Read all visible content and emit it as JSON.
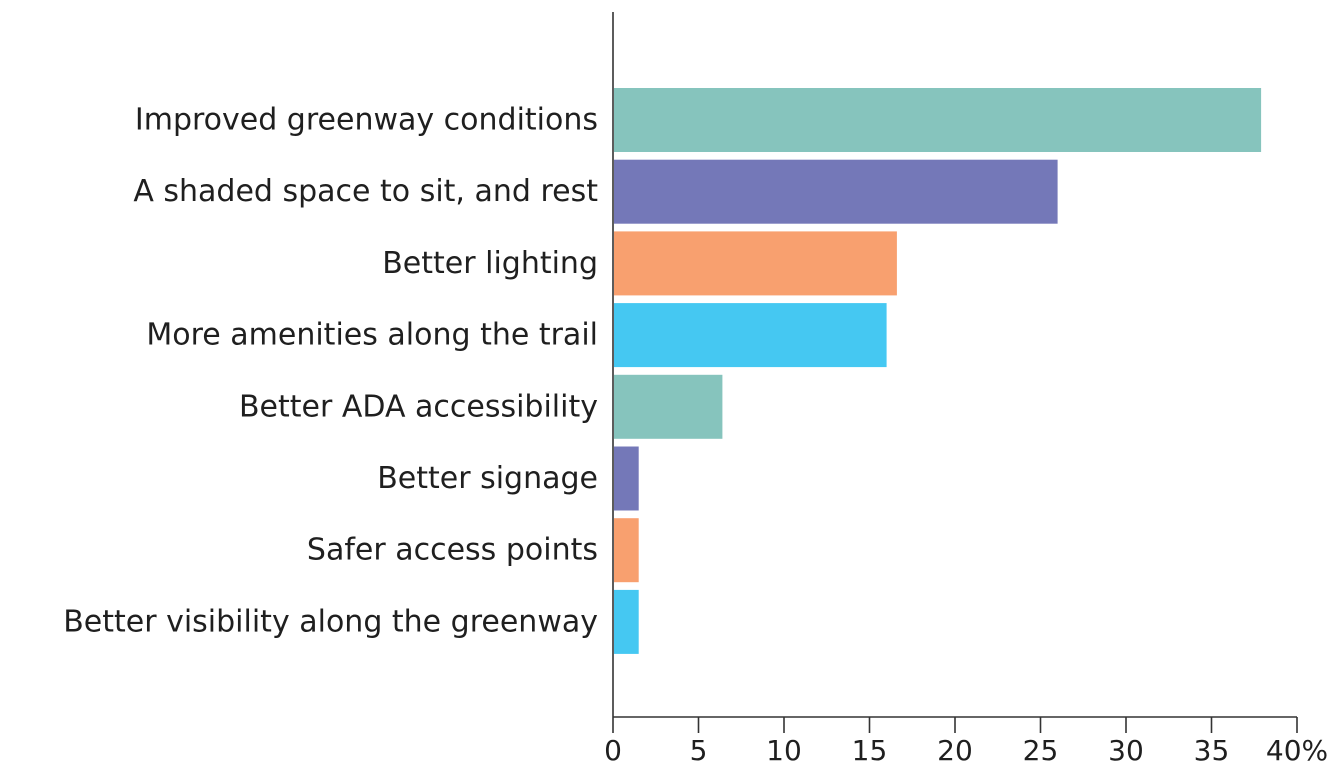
{
  "chart_data": {
    "type": "bar",
    "orientation": "horizontal",
    "categories": [
      "Improved greenway conditions",
      "A shaded space to sit, and rest",
      "Better lighting",
      "More amenities along the trail",
      "Better ADA accessibility",
      "Better signage",
      "Safer access points",
      "Better visibility along the greenway"
    ],
    "values": [
      37.9,
      26.0,
      16.6,
      16.0,
      6.4,
      1.5,
      1.5,
      1.5
    ],
    "colors": [
      "#86c4bd",
      "#7478b8",
      "#f8a06f",
      "#45c8f2",
      "#86c4bd",
      "#7478b8",
      "#f8a06f",
      "#45c8f2"
    ],
    "xticks": [
      "0",
      "5",
      "10",
      "15",
      "20",
      "25",
      "30",
      "35",
      "40%"
    ],
    "xlim": [
      0,
      40
    ],
    "grid": false,
    "title": "",
    "xlabel": "",
    "ylabel": ""
  }
}
